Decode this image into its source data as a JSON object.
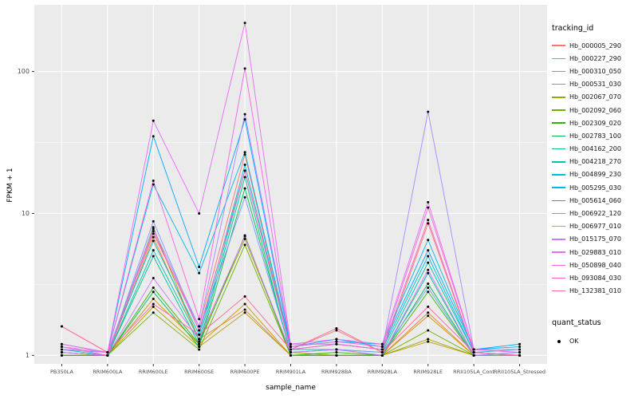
{
  "axes": {
    "x_title": "sample_name",
    "y_title": "FPKM + 1"
  },
  "legend": {
    "title": "tracking_id"
  },
  "legend2": {
    "title": "quant_status",
    "items": [
      {
        "label": "OK",
        "color": "#000000"
      }
    ]
  },
  "chart_data": {
    "type": "line",
    "title": "",
    "xlabel": "sample_name",
    "ylabel": "FPKM + 1",
    "y_scale": "log10",
    "ylim": [
      1,
      250
    ],
    "y_ticks": [
      1,
      10,
      100
    ],
    "y_tick_labels": [
      "1",
      "10",
      "100"
    ],
    "y_minor": [
      3.162,
      31.62
    ],
    "panel_bg": "#EBEBEB",
    "grid_color": "#FFFFFF",
    "tick_color": "#333333",
    "tick_label_color": "#4d4d4d",
    "point_color": "#000000",
    "legend_position": "right",
    "categories": [
      "PB350LA",
      "RRIM600LA",
      "RRIM600LE",
      "RRIM600SE",
      "RRIM600PE",
      "RRIM901LA",
      "RRIM928BA",
      "RRIM928LA",
      "RRIM928LE",
      "RRII105LA_Cont",
      "RRII105LA_Stressed"
    ],
    "series": [
      {
        "name": "Hb_000005_290",
        "color": "#F8766D",
        "values": [
          1.6,
          1.05,
          7.2,
          1.6,
          26,
          1.1,
          1.5,
          1.05,
          8.5,
          1.05,
          1.0
        ]
      },
      {
        "name": "Hb_000227_290",
        "color": "#E88526",
        "values": [
          1.0,
          1.0,
          6.8,
          1.3,
          2.1,
          1.0,
          1.0,
          1.0,
          2.0,
          1.0,
          1.0
        ]
      },
      {
        "name": "Hb_000310_050",
        "color": "#D39200",
        "values": [
          1.0,
          1.0,
          2.5,
          1.2,
          2.3,
          1.0,
          1.0,
          1.0,
          1.9,
          1.0,
          1.0
        ]
      },
      {
        "name": "Hb_000531_030",
        "color": "#BC9D00",
        "values": [
          1.0,
          1.0,
          2.2,
          1.15,
          2.0,
          1.0,
          1.0,
          1.0,
          1.25,
          1.0,
          1.0
        ]
      },
      {
        "name": "Hb_002067_070",
        "color": "#9CA700",
        "values": [
          1.05,
          1.0,
          8.0,
          1.25,
          6.6,
          1.05,
          1.0,
          1.0,
          1.3,
          1.0,
          1.0
        ]
      },
      {
        "name": "Hb_002092_060",
        "color": "#6FB000",
        "values": [
          1.0,
          1.0,
          2.0,
          1.1,
          6.0,
          1.0,
          1.0,
          1.0,
          1.5,
          1.0,
          1.0
        ]
      },
      {
        "name": "Hb_002309_020",
        "color": "#2FB600",
        "values": [
          1.0,
          1.0,
          3.0,
          1.2,
          7.0,
          1.0,
          1.05,
          1.0,
          2.8,
          1.0,
          1.0
        ]
      },
      {
        "name": "Hb_002783_100",
        "color": "#00BC51",
        "values": [
          1.05,
          1.0,
          2.8,
          1.15,
          15,
          1.05,
          1.1,
          1.0,
          3.2,
          1.0,
          1.0
        ]
      },
      {
        "name": "Hb_004162_200",
        "color": "#00C08D",
        "values": [
          1.0,
          1.0,
          5.0,
          1.2,
          18,
          1.0,
          1.0,
          1.0,
          3.8,
          1.0,
          1.0
        ]
      },
      {
        "name": "Hb_004218_270",
        "color": "#00C0B2",
        "values": [
          1.1,
          1.0,
          5.5,
          1.3,
          20,
          1.1,
          1.1,
          1.05,
          4.5,
          1.05,
          1.0
        ]
      },
      {
        "name": "Hb_004899_230",
        "color": "#00BDD0",
        "values": [
          1.1,
          1.05,
          6.4,
          1.4,
          22,
          1.1,
          1.2,
          1.1,
          5.0,
          1.05,
          1.1
        ]
      },
      {
        "name": "Hb_005295_030",
        "color": "#00B5EC",
        "values": [
          1.2,
          1.05,
          16,
          3.8,
          27,
          1.15,
          1.25,
          1.2,
          6.5,
          1.1,
          1.15
        ]
      },
      {
        "name": "Hb_005614_060",
        "color": "#00A7FF",
        "values": [
          1.1,
          1.05,
          35,
          4.2,
          46,
          1.15,
          1.3,
          1.15,
          5.5,
          1.1,
          1.2
        ]
      },
      {
        "name": "Hb_006922_120",
        "color": "#7997FF",
        "values": [
          1.05,
          1.0,
          8.8,
          1.5,
          13,
          1.05,
          1.1,
          1.05,
          3.0,
          1.0,
          1.05
        ]
      },
      {
        "name": "Hb_006977_010",
        "color": "#AC88FF",
        "values": [
          1.1,
          1.05,
          7.8,
          1.6,
          50,
          1.2,
          1.2,
          1.1,
          52,
          1.1,
          1.05
        ]
      },
      {
        "name": "Hb_015175_070",
        "color": "#CF78FF",
        "values": [
          1.05,
          1.0,
          3.5,
          1.3,
          6.9,
          1.05,
          1.1,
          1.0,
          4.0,
          1.0,
          1.0
        ]
      },
      {
        "name": "Hb_029883_010",
        "color": "#E56DF5",
        "values": [
          1.15,
          1.05,
          45,
          10,
          220,
          1.2,
          1.3,
          1.2,
          12,
          1.1,
          1.1
        ]
      },
      {
        "name": "Hb_050898_040",
        "color": "#F564E3",
        "values": [
          1.2,
          1.05,
          17,
          1.8,
          105,
          1.15,
          1.25,
          1.15,
          11,
          1.1,
          1.05
        ]
      },
      {
        "name": "Hb_093084_030",
        "color": "#FF61C7",
        "values": [
          1.15,
          1.0,
          7.5,
          1.5,
          20,
          1.1,
          1.2,
          1.1,
          9.0,
          1.05,
          1.0
        ]
      },
      {
        "name": "Hb_132381_010",
        "color": "#FF689E",
        "values": [
          1.6,
          1.05,
          2.3,
          1.4,
          2.6,
          1.1,
          1.55,
          1.05,
          2.2,
          1.05,
          1.0
        ]
      }
    ]
  }
}
